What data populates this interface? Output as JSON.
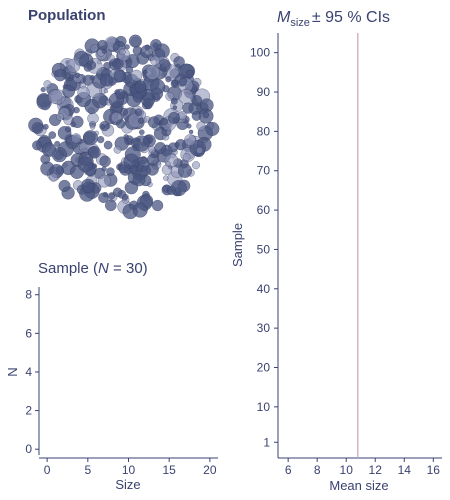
{
  "colors": {
    "text": "#3a4270",
    "dot_fill": "#4a5580",
    "dot_fill_light": "#8e94b8",
    "dot_stroke": "#2e365e",
    "ref_line": "#c9a3b8",
    "background": "#ffffff"
  },
  "chart_data": [
    {
      "type": "scatter",
      "panel": "population",
      "title": "Population",
      "description_counts": {
        "dots": 420
      },
      "x": [],
      "y": [],
      "note": ""
    },
    {
      "type": "bar",
      "panel": "sample-histogram",
      "title_prefix": "Sample",
      "title_var": "N",
      "title_value": "30",
      "xlabel": "Size",
      "ylabel": "N",
      "xlim": [
        -1,
        21
      ],
      "ylim": [
        -0.3,
        8.4
      ],
      "xticks": [
        0,
        5,
        10,
        15,
        20
      ],
      "yticks": [
        0,
        2,
        4,
        6,
        8
      ],
      "categories": [],
      "values": []
    },
    {
      "type": "scatter",
      "panel": "mean-ci",
      "title_var": "M",
      "title_sub": "size",
      "title_rest": "± 95 % CIs",
      "xlabel": "Mean size",
      "ylabel": "Sample",
      "xlim": [
        5.3,
        16.6
      ],
      "ylim": [
        -3,
        105
      ],
      "xticks": [
        6,
        8,
        10,
        12,
        14,
        16
      ],
      "yticks": [
        1,
        10,
        20,
        30,
        40,
        50,
        60,
        70,
        80,
        90,
        100
      ],
      "reference_line_x": 10.8,
      "series": []
    }
  ]
}
